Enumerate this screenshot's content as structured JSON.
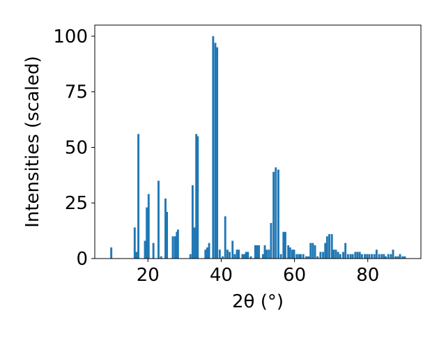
{
  "chart_data": {
    "type": "bar",
    "xlabel": "2θ (°)",
    "ylabel": "Intensities (scaled)",
    "xlim": [
      5.5,
      94.5
    ],
    "ylim": [
      0,
      105
    ],
    "xticks": [
      20,
      40,
      60,
      80
    ],
    "yticks": [
      0,
      25,
      50,
      75,
      100
    ],
    "bar_color": "#1f77b4",
    "bar_width": 0.55,
    "grid": false,
    "x": [
      10.0,
      16.4,
      16.9,
      17.4,
      19.2,
      19.7,
      20.2,
      21.5,
      22.9,
      23.6,
      24.8,
      25.2,
      26.8,
      27.4,
      27.9,
      28.2,
      31.6,
      32.2,
      32.7,
      33.2,
      33.6,
      35.7,
      36.2,
      36.7,
      37.8,
      38.4,
      38.9,
      39.6,
      40.4,
      41.1,
      41.7,
      42.3,
      43.1,
      43.7,
      44.3,
      44.8,
      45.8,
      46.3,
      46.8,
      47.3,
      48.1,
      49.3,
      49.8,
      50.3,
      51.4,
      51.9,
      52.4,
      53.0,
      53.6,
      54.3,
      54.9,
      55.6,
      56.3,
      57.0,
      57.5,
      58.3,
      58.8,
      59.4,
      59.9,
      60.6,
      61.2,
      61.7,
      62.4,
      63.2,
      63.8,
      64.4,
      65.0,
      65.6,
      66.3,
      67.1,
      67.8,
      68.4,
      68.9,
      69.5,
      70.2,
      70.7,
      71.3,
      71.9,
      72.5,
      73.3,
      73.9,
      74.6,
      75.3,
      75.9,
      76.6,
      77.2,
      77.8,
      78.4,
      79.2,
      79.8,
      80.4,
      81.1,
      81.8,
      82.4,
      83.1,
      83.8,
      84.4,
      84.9,
      85.6,
      86.3,
      86.9,
      87.6,
      88.2,
      88.8,
      89.5,
      90.1
    ],
    "values": [
      5,
      14,
      3,
      56,
      8,
      23,
      29,
      7,
      35,
      1,
      27,
      21,
      10,
      10,
      12,
      13,
      2,
      33,
      14,
      56,
      55,
      4,
      5,
      7,
      100,
      97,
      95,
      4,
      1,
      19,
      4,
      3,
      8,
      2,
      4,
      4,
      2,
      2,
      3,
      3,
      1,
      6,
      6,
      6,
      2,
      6,
      4,
      4,
      16,
      39,
      41,
      40,
      2,
      12,
      12,
      6,
      5,
      4,
      4,
      2,
      2,
      2,
      2,
      1,
      1,
      7,
      7,
      6,
      1,
      3,
      3,
      7,
      10,
      11,
      11,
      4,
      4,
      3,
      2,
      3,
      7,
      2,
      2,
      2,
      3,
      3,
      3,
      2,
      2,
      2,
      2,
      2,
      2,
      4,
      2,
      2,
      2,
      1,
      2,
      2,
      4,
      1,
      1,
      2,
      1,
      1
    ]
  }
}
